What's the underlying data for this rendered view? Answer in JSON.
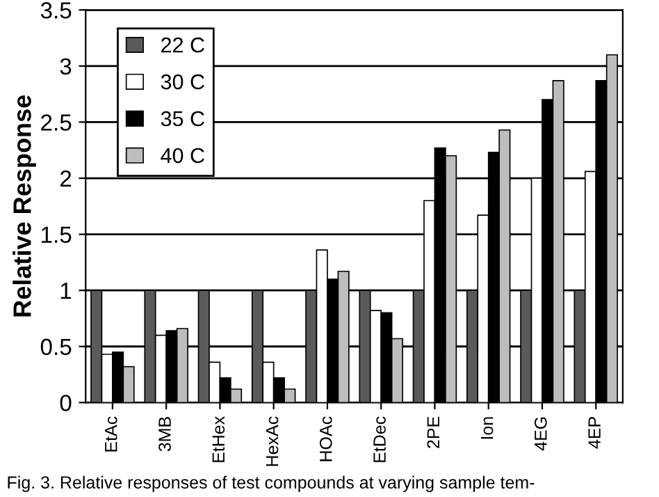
{
  "chart_data": {
    "type": "bar",
    "ylabel": "Relative Response",
    "categories": [
      "EtAc",
      "3MB",
      "EtHex",
      "HexAc",
      "HOAc",
      "EtDec",
      "2PE",
      "Ion",
      "4EG",
      "4EP"
    ],
    "series": [
      {
        "name": "22 C",
        "color": "#5a5a5a",
        "values": [
          1,
          1,
          1,
          1,
          1,
          1,
          1,
          1,
          1,
          1
        ]
      },
      {
        "name": "30 C",
        "color": "#ffffff",
        "values": [
          0.43,
          0.6,
          0.36,
          0.36,
          1.36,
          0.82,
          1.8,
          1.67,
          2.0,
          2.06
        ]
      },
      {
        "name": "35 C",
        "color": "#000000",
        "values": [
          0.45,
          0.64,
          0.22,
          0.22,
          1.1,
          0.8,
          2.27,
          2.23,
          2.7,
          2.87
        ]
      },
      {
        "name": "40 C",
        "color": "#bdbdbd",
        "values": [
          0.32,
          0.66,
          0.12,
          0.12,
          1.17,
          0.57,
          2.2,
          2.43,
          2.87,
          3.1
        ]
      }
    ],
    "ylim": [
      0,
      3.5
    ],
    "yticks": [
      0,
      0.5,
      1,
      1.5,
      2,
      2.5,
      3,
      3.5
    ],
    "grid": "y",
    "legend": "top left",
    "annotations": [
      "Fig. 3. Relative responses of test compounds at varying sample tem-"
    ]
  }
}
